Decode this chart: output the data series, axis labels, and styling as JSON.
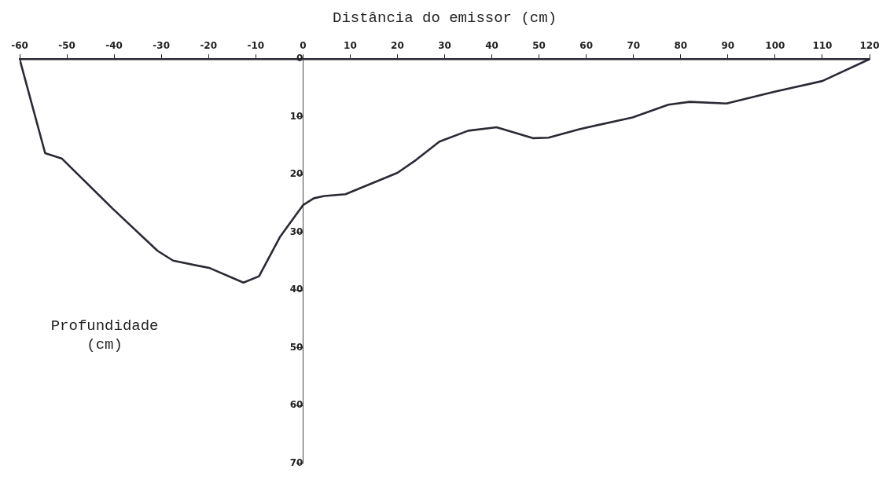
{
  "chart_data": {
    "type": "line",
    "xlabel": "Distância do emissor (cm)",
    "ylabel": "Profundidade (cm)",
    "x": [
      -60,
      -54.6,
      -51.1,
      -40.3,
      -30.8,
      -27.5,
      -19.7,
      -12.6,
      -9.3,
      -4.8,
      0,
      2.3,
      4.5,
      9,
      20,
      23.9,
      28.9,
      35,
      41,
      48.8,
      52,
      58.7,
      69.8,
      77.4,
      81.9,
      89.7,
      99.7,
      110,
      120
    ],
    "series": [
      {
        "color": "#2a2a35",
        "values": [
          0,
          16.3,
          17.2,
          25.9,
          33.2,
          34.9,
          36.2,
          38.7,
          37.6,
          30.7,
          25.3,
          24.1,
          23.7,
          23.4,
          19.7,
          17.5,
          14.3,
          12.4,
          11.8,
          13.7,
          13.6,
          12.1,
          10.1,
          7.9,
          7.4,
          7.7,
          5.7,
          3.8,
          0
        ]
      }
    ],
    "xlim": [
      -60,
      120
    ],
    "xticks": [
      -60,
      -50,
      -40,
      -30,
      -20,
      -10,
      0,
      10,
      20,
      30,
      40,
      50,
      60,
      70,
      80,
      90,
      100,
      110,
      120
    ],
    "ylim": [
      70,
      0
    ],
    "yticks": [
      0,
      10,
      20,
      30,
      40,
      50,
      60,
      70
    ],
    "grid": false,
    "legend": false,
    "marker": "none",
    "line_style": "solid"
  }
}
